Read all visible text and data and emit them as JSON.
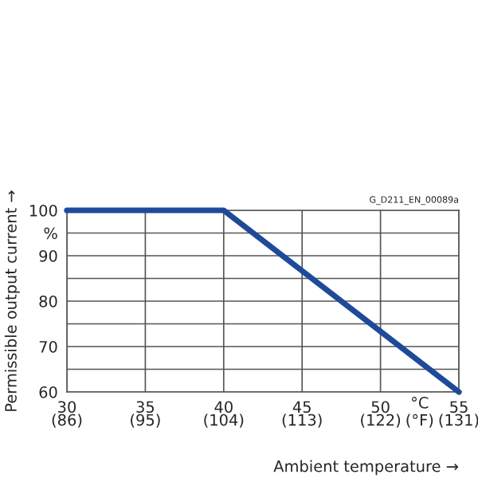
{
  "chart_data": {
    "type": "line",
    "xlabel": "Ambient temperature →",
    "ylabel": "Permissible output current →",
    "x": [
      30,
      40,
      55
    ],
    "series": [
      {
        "color": "#1f4a9a",
        "values": [
          100,
          100,
          60
        ]
      }
    ],
    "xlim": [
      30,
      55
    ],
    "ylim": [
      60,
      100
    ],
    "xticks": [
      30,
      35,
      40,
      45,
      50,
      55
    ],
    "x2lim": [
      86,
      131
    ],
    "x2ticks": [
      {
        "value": 86,
        "label": "(86)"
      },
      {
        "value": 95,
        "label": "(95)"
      },
      {
        "value": 104,
        "label": "(104)"
      },
      {
        "value": 113,
        "label": "(113)"
      },
      {
        "value": 122,
        "label": "(122)"
      },
      {
        "value": 131,
        "label": "(131)"
      }
    ],
    "yticks": [
      60,
      {
        "value": 65,
        "label": null
      },
      70,
      {
        "value": 75,
        "label": null
      },
      80,
      {
        "value": 85,
        "label": null
      },
      90,
      {
        "value": 95,
        "label": "%"
      },
      100
    ],
    "annotations": [
      "G_D211_EN_00089a",
      "°C\n(°F)"
    ],
    "grid": true,
    "legend": false,
    "marker": "none",
    "line_style": "solid"
  }
}
